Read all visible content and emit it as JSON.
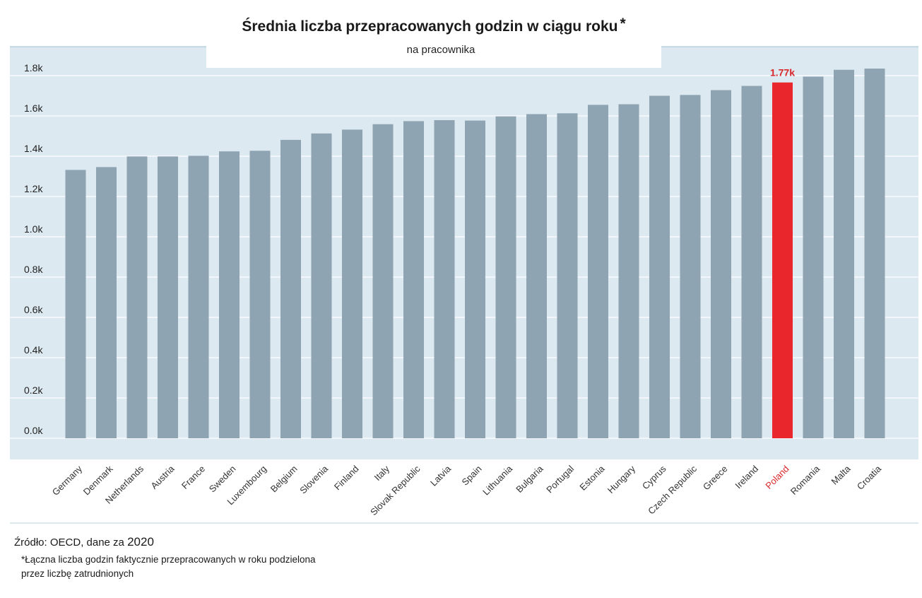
{
  "chart_data": {
    "type": "bar",
    "title": "Średnia liczba przepracowanych godzin w ciągu roku",
    "title_mark": "*",
    "subtitle": "na pracownika",
    "categories": [
      "Germany",
      "Denmark",
      "Netherlands",
      "Austria",
      "France",
      "Sweden",
      "Luxembourg",
      "Belgium",
      "Slovenia",
      "Finland",
      "Italy",
      "Slovak Republic",
      "Latvia",
      "Spain",
      "Lithuania",
      "Bulgaria",
      "Portugal",
      "Estonia",
      "Hungary",
      "Cyprus",
      "Czech Republic",
      "Greece",
      "Ireland",
      "Poland",
      "Romania",
      "Malta",
      "Croatia"
    ],
    "values": [
      1332,
      1346,
      1399,
      1399,
      1402,
      1424,
      1427,
      1481,
      1513,
      1532,
      1559,
      1574,
      1579,
      1577,
      1598,
      1609,
      1613,
      1655,
      1658,
      1700,
      1704,
      1728,
      1749,
      1766,
      1795,
      1829,
      1835
    ],
    "highlight": {
      "category": "Poland",
      "label": "1.77k",
      "color": "#e8262c"
    },
    "y_ticks": [
      "0.0k",
      "0.2k",
      "0.4k",
      "0.6k",
      "0.8k",
      "1.0k",
      "1.2k",
      "1.4k",
      "1.6k",
      "1.8k"
    ],
    "ylim": [
      0,
      1800
    ],
    "grid": true,
    "bar_color": "#8fa4b2",
    "plot_bg": "#dde9f0"
  },
  "footer": {
    "source_prefix": "Źródło: OECD, dane za",
    "source_year": "2020",
    "note_line1": "*Łączna liczba godzin faktycznie przepracowanych w roku podzielona",
    "note_line2": "przez liczbę zatrudnionych"
  }
}
